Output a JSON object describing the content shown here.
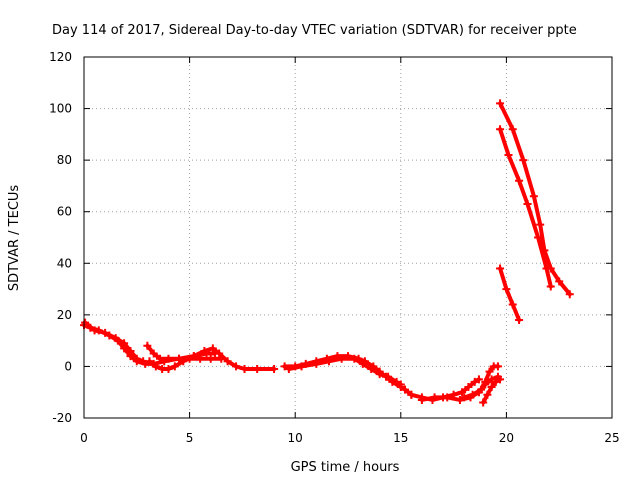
{
  "chart_data": {
    "type": "line",
    "title": "Day 114 of 2017, Sidereal Day-to-day VTEC variation (SDTVAR) for receiver ppte",
    "xlabel": "GPS time / hours",
    "ylabel": "SDTVAR / TECUs",
    "xlim": [
      0,
      25
    ],
    "ylim": [
      -20,
      120
    ],
    "xticks": [
      0,
      5,
      10,
      15,
      20,
      25
    ],
    "yticks": [
      -20,
      0,
      20,
      40,
      60,
      80,
      100,
      120
    ],
    "grid": true,
    "legend": "none",
    "color": "#ff0000",
    "series": [
      {
        "name": "trace-1",
        "points": [
          [
            0.0,
            16
          ],
          [
            0.3,
            15
          ],
          [
            0.7,
            14
          ],
          [
            1.2,
            12
          ],
          [
            1.6,
            10
          ],
          [
            1.9,
            7
          ],
          [
            2.2,
            4
          ],
          [
            2.5,
            2
          ],
          [
            2.9,
            1
          ],
          [
            3.3,
            1
          ],
          [
            3.8,
            2
          ],
          [
            4.5,
            3
          ],
          [
            5.2,
            4
          ],
          [
            5.8,
            5
          ],
          [
            6.2,
            5
          ]
        ]
      },
      {
        "name": "trace-2",
        "points": [
          [
            0.05,
            17
          ],
          [
            0.5,
            14
          ],
          [
            1.0,
            13
          ],
          [
            1.5,
            11
          ],
          [
            1.9,
            9
          ],
          [
            2.2,
            6
          ],
          [
            2.5,
            3
          ],
          [
            2.8,
            2
          ]
        ]
      },
      {
        "name": "trace-3",
        "points": [
          [
            3.0,
            8
          ],
          [
            3.3,
            5
          ],
          [
            3.6,
            3
          ],
          [
            4.0,
            3
          ],
          [
            4.5,
            3
          ],
          [
            5.0,
            3
          ],
          [
            5.5,
            3
          ],
          [
            6.0,
            3
          ],
          [
            6.5,
            3
          ]
        ]
      },
      {
        "name": "trace-4",
        "points": [
          [
            3.1,
            2
          ],
          [
            3.4,
            0
          ],
          [
            3.7,
            -1
          ],
          [
            4.0,
            -1
          ],
          [
            4.3,
            0
          ],
          [
            4.7,
            2
          ],
          [
            5.2,
            4
          ],
          [
            5.7,
            6
          ],
          [
            6.1,
            7
          ],
          [
            6.4,
            5
          ],
          [
            6.8,
            2
          ],
          [
            7.2,
            0
          ],
          [
            7.6,
            -1
          ],
          [
            8.2,
            -1
          ],
          [
            9.0,
            -1
          ]
        ]
      },
      {
        "name": "trace-5",
        "points": [
          [
            9.5,
            0
          ],
          [
            10.0,
            0
          ],
          [
            10.5,
            1
          ],
          [
            11.0,
            2
          ],
          [
            11.5,
            3
          ],
          [
            12.0,
            4
          ],
          [
            12.5,
            4
          ],
          [
            13.0,
            3
          ],
          [
            13.3,
            2
          ],
          [
            13.7,
            0
          ],
          [
            14.0,
            -2
          ],
          [
            14.3,
            -4
          ],
          [
            14.6,
            -6
          ],
          [
            15.0,
            -8
          ],
          [
            15.2,
            -9
          ],
          [
            15.5,
            -11
          ]
        ]
      },
      {
        "name": "trace-6",
        "points": [
          [
            9.7,
            -1
          ],
          [
            10.3,
            0
          ],
          [
            11.0,
            1
          ],
          [
            11.6,
            2
          ],
          [
            12.2,
            3
          ],
          [
            12.8,
            3
          ],
          [
            13.2,
            1
          ],
          [
            13.6,
            -1
          ],
          [
            14.0,
            -3
          ],
          [
            14.4,
            -4
          ],
          [
            14.8,
            -6
          ],
          [
            15.0,
            -7
          ]
        ]
      },
      {
        "name": "trace-7",
        "points": [
          [
            15.5,
            -11
          ],
          [
            16.0,
            -12
          ],
          [
            16.5,
            -13
          ],
          [
            17.0,
            -12
          ],
          [
            17.5,
            -11
          ],
          [
            17.9,
            -10
          ],
          [
            18.2,
            -8
          ],
          [
            18.5,
            -6
          ],
          [
            18.7,
            -5
          ]
        ]
      },
      {
        "name": "trace-8",
        "points": [
          [
            16.0,
            -13
          ],
          [
            16.6,
            -12
          ],
          [
            17.2,
            -12
          ],
          [
            17.8,
            -13
          ],
          [
            18.3,
            -12
          ],
          [
            18.7,
            -10
          ],
          [
            19.0,
            -7
          ],
          [
            19.3,
            -5
          ],
          [
            19.6,
            -4
          ]
        ]
      },
      {
        "name": "trace-9",
        "points": [
          [
            18.0,
            -12
          ],
          [
            18.4,
            -11
          ],
          [
            18.8,
            -9
          ],
          [
            19.0,
            -6
          ],
          [
            19.2,
            -2
          ],
          [
            19.4,
            0
          ],
          [
            19.6,
            0
          ]
        ]
      },
      {
        "name": "trace-10",
        "points": [
          [
            18.9,
            -14
          ],
          [
            19.1,
            -11
          ],
          [
            19.3,
            -8
          ],
          [
            19.5,
            -6
          ],
          [
            19.7,
            -5
          ]
        ]
      },
      {
        "name": "trace-11",
        "points": [
          [
            19.7,
            38
          ],
          [
            20.0,
            30
          ],
          [
            20.3,
            24
          ],
          [
            20.6,
            18
          ]
        ]
      },
      {
        "name": "trace-12",
        "points": [
          [
            19.7,
            92
          ],
          [
            20.1,
            82
          ],
          [
            20.6,
            72
          ],
          [
            21.0,
            63
          ],
          [
            21.5,
            50
          ],
          [
            21.9,
            38
          ],
          [
            22.1,
            31
          ]
        ]
      },
      {
        "name": "trace-13",
        "points": [
          [
            19.7,
            102
          ],
          [
            20.3,
            92
          ],
          [
            20.8,
            80
          ],
          [
            21.3,
            66
          ],
          [
            21.6,
            55
          ],
          [
            21.8,
            45
          ],
          [
            22.1,
            38
          ],
          [
            22.5,
            33
          ],
          [
            23.0,
            28
          ]
        ]
      }
    ]
  }
}
